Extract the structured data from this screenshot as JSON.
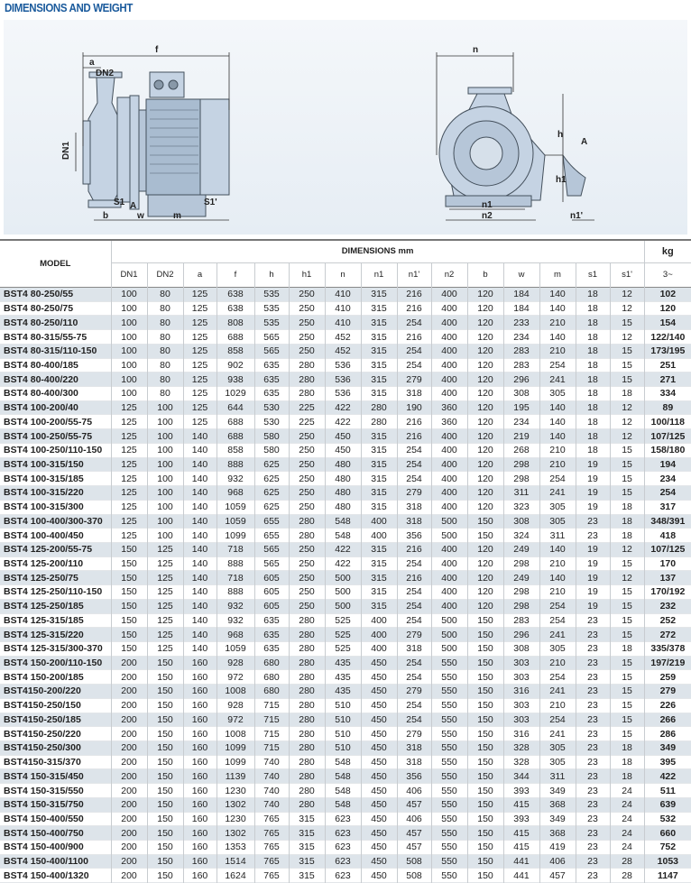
{
  "title": "DIMENSIONS AND WEIGHT",
  "diagram": {
    "labels": {
      "f": "f",
      "a": "a",
      "DN2": "DN2",
      "DN1": "DN1",
      "S1": "S1",
      "S1p": "S1'",
      "A": "A",
      "b": "b",
      "w": "w",
      "m": "m",
      "n": "n",
      "h": "h",
      "h1": "h1",
      "n1": "n1",
      "n2": "n2",
      "n1p": "n1'",
      "A2": "A"
    },
    "colors": {
      "body": "#c5d3e3",
      "outline": "#44505c",
      "background": "#eaf0f6"
    }
  },
  "table": {
    "model_header": "MODEL",
    "dimensions_header": "DIMENSIONS mm",
    "weight_header": "kg",
    "columns": [
      "DN1",
      "DN2",
      "a",
      "f",
      "h",
      "h1",
      "n",
      "n1",
      "n1'",
      "n2",
      "b",
      "w",
      "m",
      "s1",
      "s1'",
      "3~"
    ],
    "rows": [
      [
        "BST4 80-250/55",
        "100",
        "80",
        "125",
        "638",
        "535",
        "250",
        "410",
        "315",
        "216",
        "400",
        "120",
        "184",
        "140",
        "18",
        "12",
        "102"
      ],
      [
        "BST4 80-250/75",
        "100",
        "80",
        "125",
        "638",
        "535",
        "250",
        "410",
        "315",
        "216",
        "400",
        "120",
        "184",
        "140",
        "18",
        "12",
        "120"
      ],
      [
        "BST4 80-250/110",
        "100",
        "80",
        "125",
        "808",
        "535",
        "250",
        "410",
        "315",
        "254",
        "400",
        "120",
        "233",
        "210",
        "18",
        "15",
        "154"
      ],
      [
        "BST4 80-315/55-75",
        "100",
        "80",
        "125",
        "688",
        "565",
        "250",
        "452",
        "315",
        "216",
        "400",
        "120",
        "234",
        "140",
        "18",
        "12",
        "122/140"
      ],
      [
        "BST4 80-315/110-150",
        "100",
        "80",
        "125",
        "858",
        "565",
        "250",
        "452",
        "315",
        "254",
        "400",
        "120",
        "283",
        "210",
        "18",
        "15",
        "173/195"
      ],
      [
        "BST4 80-400/185",
        "100",
        "80",
        "125",
        "902",
        "635",
        "280",
        "536",
        "315",
        "254",
        "400",
        "120",
        "283",
        "254",
        "18",
        "15",
        "251"
      ],
      [
        "BST4 80-400/220",
        "100",
        "80",
        "125",
        "938",
        "635",
        "280",
        "536",
        "315",
        "279",
        "400",
        "120",
        "296",
        "241",
        "18",
        "15",
        "271"
      ],
      [
        "BST4 80-400/300",
        "100",
        "80",
        "125",
        "1029",
        "635",
        "280",
        "536",
        "315",
        "318",
        "400",
        "120",
        "308",
        "305",
        "18",
        "18",
        "334"
      ],
      [
        "BST4 100-200/40",
        "125",
        "100",
        "125",
        "644",
        "530",
        "225",
        "422",
        "280",
        "190",
        "360",
        "120",
        "195",
        "140",
        "18",
        "12",
        "89"
      ],
      [
        "BST4 100-200/55-75",
        "125",
        "100",
        "125",
        "688",
        "530",
        "225",
        "422",
        "280",
        "216",
        "360",
        "120",
        "234",
        "140",
        "18",
        "12",
        "100/118"
      ],
      [
        "BST4 100-250/55-75",
        "125",
        "100",
        "140",
        "688",
        "580",
        "250",
        "450",
        "315",
        "216",
        "400",
        "120",
        "219",
        "140",
        "18",
        "12",
        "107/125"
      ],
      [
        "BST4 100-250/110-150",
        "125",
        "100",
        "140",
        "858",
        "580",
        "250",
        "450",
        "315",
        "254",
        "400",
        "120",
        "268",
        "210",
        "18",
        "15",
        "158/180"
      ],
      [
        "BST4 100-315/150",
        "125",
        "100",
        "140",
        "888",
        "625",
        "250",
        "480",
        "315",
        "254",
        "400",
        "120",
        "298",
        "210",
        "19",
        "15",
        "194"
      ],
      [
        "BST4 100-315/185",
        "125",
        "100",
        "140",
        "932",
        "625",
        "250",
        "480",
        "315",
        "254",
        "400",
        "120",
        "298",
        "254",
        "19",
        "15",
        "234"
      ],
      [
        "BST4 100-315/220",
        "125",
        "100",
        "140",
        "968",
        "625",
        "250",
        "480",
        "315",
        "279",
        "400",
        "120",
        "311",
        "241",
        "19",
        "15",
        "254"
      ],
      [
        "BST4 100-315/300",
        "125",
        "100",
        "140",
        "1059",
        "625",
        "250",
        "480",
        "315",
        "318",
        "400",
        "120",
        "323",
        "305",
        "19",
        "18",
        "317"
      ],
      [
        "BST4 100-400/300-370",
        "125",
        "100",
        "140",
        "1059",
        "655",
        "280",
        "548",
        "400",
        "318",
        "500",
        "150",
        "308",
        "305",
        "23",
        "18",
        "348/391"
      ],
      [
        "BST4 100-400/450",
        "125",
        "100",
        "140",
        "1099",
        "655",
        "280",
        "548",
        "400",
        "356",
        "500",
        "150",
        "324",
        "311",
        "23",
        "18",
        "418"
      ],
      [
        "BST4 125-200/55-75",
        "150",
        "125",
        "140",
        "718",
        "565",
        "250",
        "422",
        "315",
        "216",
        "400",
        "120",
        "249",
        "140",
        "19",
        "12",
        "107/125"
      ],
      [
        "BST4 125-200/110",
        "150",
        "125",
        "140",
        "888",
        "565",
        "250",
        "422",
        "315",
        "254",
        "400",
        "120",
        "298",
        "210",
        "19",
        "15",
        "170"
      ],
      [
        "BST4 125-250/75",
        "150",
        "125",
        "140",
        "718",
        "605",
        "250",
        "500",
        "315",
        "216",
        "400",
        "120",
        "249",
        "140",
        "19",
        "12",
        "137"
      ],
      [
        "BST4 125-250/110-150",
        "150",
        "125",
        "140",
        "888",
        "605",
        "250",
        "500",
        "315",
        "254",
        "400",
        "120",
        "298",
        "210",
        "19",
        "15",
        "170/192"
      ],
      [
        "BST4 125-250/185",
        "150",
        "125",
        "140",
        "932",
        "605",
        "250",
        "500",
        "315",
        "254",
        "400",
        "120",
        "298",
        "254",
        "19",
        "15",
        "232"
      ],
      [
        "BST4 125-315/185",
        "150",
        "125",
        "140",
        "932",
        "635",
        "280",
        "525",
        "400",
        "254",
        "500",
        "150",
        "283",
        "254",
        "23",
        "15",
        "252"
      ],
      [
        "BST4 125-315/220",
        "150",
        "125",
        "140",
        "968",
        "635",
        "280",
        "525",
        "400",
        "279",
        "500",
        "150",
        "296",
        "241",
        "23",
        "15",
        "272"
      ],
      [
        "BST4 125-315/300-370",
        "150",
        "125",
        "140",
        "1059",
        "635",
        "280",
        "525",
        "400",
        "318",
        "500",
        "150",
        "308",
        "305",
        "23",
        "18",
        "335/378"
      ],
      [
        "BST4 150-200/110-150",
        "200",
        "150",
        "160",
        "928",
        "680",
        "280",
        "435",
        "450",
        "254",
        "550",
        "150",
        "303",
        "210",
        "23",
        "15",
        "197/219"
      ],
      [
        "BST4 150-200/185",
        "200",
        "150",
        "160",
        "972",
        "680",
        "280",
        "435",
        "450",
        "254",
        "550",
        "150",
        "303",
        "254",
        "23",
        "15",
        "259"
      ],
      [
        "BST4150-200/220",
        "200",
        "150",
        "160",
        "1008",
        "680",
        "280",
        "435",
        "450",
        "279",
        "550",
        "150",
        "316",
        "241",
        "23",
        "15",
        "279"
      ],
      [
        "BST4150-250/150",
        "200",
        "150",
        "160",
        "928",
        "715",
        "280",
        "510",
        "450",
        "254",
        "550",
        "150",
        "303",
        "210",
        "23",
        "15",
        "226"
      ],
      [
        "BST4150-250/185",
        "200",
        "150",
        "160",
        "972",
        "715",
        "280",
        "510",
        "450",
        "254",
        "550",
        "150",
        "303",
        "254",
        "23",
        "15",
        "266"
      ],
      [
        "BST4150-250/220",
        "200",
        "150",
        "160",
        "1008",
        "715",
        "280",
        "510",
        "450",
        "279",
        "550",
        "150",
        "316",
        "241",
        "23",
        "15",
        "286"
      ],
      [
        "BST4150-250/300",
        "200",
        "150",
        "160",
        "1099",
        "715",
        "280",
        "510",
        "450",
        "318",
        "550",
        "150",
        "328",
        "305",
        "23",
        "18",
        "349"
      ],
      [
        "BST4150-315/370",
        "200",
        "150",
        "160",
        "1099",
        "740",
        "280",
        "548",
        "450",
        "318",
        "550",
        "150",
        "328",
        "305",
        "23",
        "18",
        "395"
      ],
      [
        "BST4 150-315/450",
        "200",
        "150",
        "160",
        "1139",
        "740",
        "280",
        "548",
        "450",
        "356",
        "550",
        "150",
        "344",
        "311",
        "23",
        "18",
        "422"
      ],
      [
        "BST4 150-315/550",
        "200",
        "150",
        "160",
        "1230",
        "740",
        "280",
        "548",
        "450",
        "406",
        "550",
        "150",
        "393",
        "349",
        "23",
        "24",
        "511"
      ],
      [
        "BST4 150-315/750",
        "200",
        "150",
        "160",
        "1302",
        "740",
        "280",
        "548",
        "450",
        "457",
        "550",
        "150",
        "415",
        "368",
        "23",
        "24",
        "639"
      ],
      [
        "BST4 150-400/550",
        "200",
        "150",
        "160",
        "1230",
        "765",
        "315",
        "623",
        "450",
        "406",
        "550",
        "150",
        "393",
        "349",
        "23",
        "24",
        "532"
      ],
      [
        "BST4 150-400/750",
        "200",
        "150",
        "160",
        "1302",
        "765",
        "315",
        "623",
        "450",
        "457",
        "550",
        "150",
        "415",
        "368",
        "23",
        "24",
        "660"
      ],
      [
        "BST4 150-400/900",
        "200",
        "150",
        "160",
        "1353",
        "765",
        "315",
        "623",
        "450",
        "457",
        "550",
        "150",
        "415",
        "419",
        "23",
        "24",
        "752"
      ],
      [
        "BST4 150-400/1100",
        "200",
        "150",
        "160",
        "1514",
        "765",
        "315",
        "623",
        "450",
        "508",
        "550",
        "150",
        "441",
        "406",
        "23",
        "28",
        "1053"
      ],
      [
        "BST4 150-400/1320",
        "200",
        "150",
        "160",
        "1624",
        "765",
        "315",
        "623",
        "450",
        "508",
        "550",
        "150",
        "441",
        "457",
        "23",
        "28",
        "1147"
      ]
    ]
  }
}
